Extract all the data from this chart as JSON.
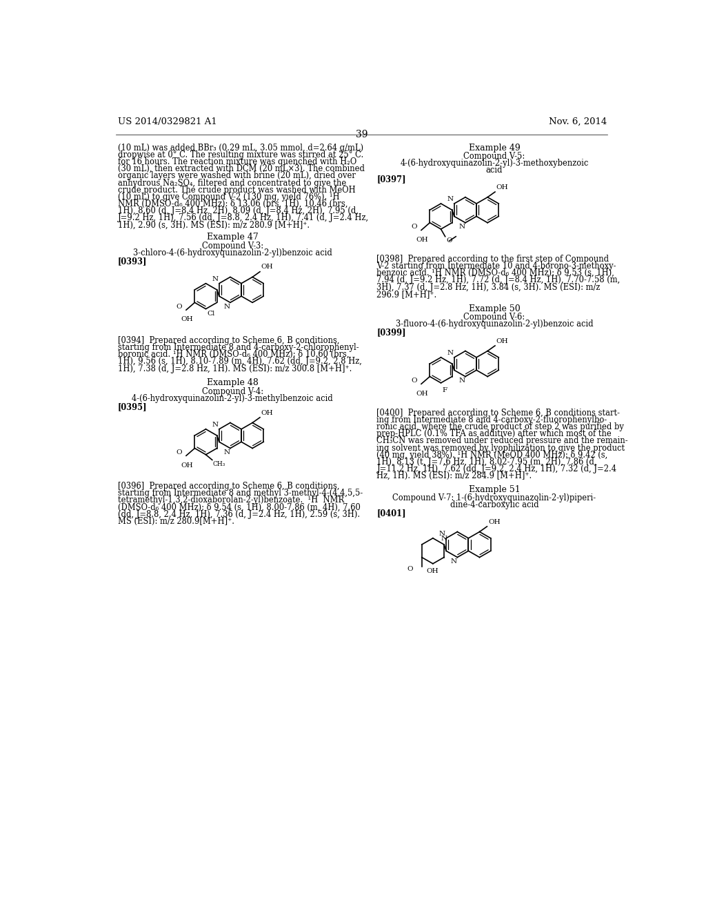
{
  "page_number": "39",
  "header_left": "US 2014/0329821 A1",
  "header_right": "Nov. 6, 2014",
  "background_color": "#ffffff",
  "text_color": "#000000"
}
